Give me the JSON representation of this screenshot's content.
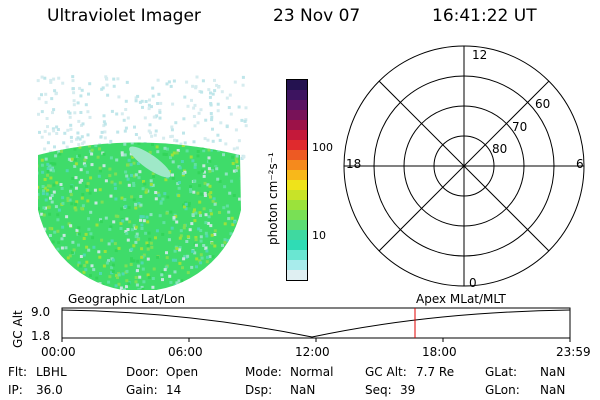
{
  "header": {
    "instrument": "Ultraviolet Imager",
    "date": "23 Nov 07",
    "time": "16:41:22 UT"
  },
  "colorbar": {
    "label": "photon cm⁻²s⁻¹",
    "ticks": [
      "100",
      "10"
    ],
    "colors": [
      "#dfeff2",
      "#a8ecec",
      "#6ae6d2",
      "#2fdcb5",
      "#3fd9a0",
      "#5cdc74",
      "#79e055",
      "#9be23b",
      "#c8e328",
      "#efe31a",
      "#f8b81a",
      "#f58a1d",
      "#ed5a23",
      "#e02a2d",
      "#c4193a",
      "#9c1248",
      "#781258",
      "#5a1362",
      "#3d1460",
      "#241250"
    ],
    "palette": {
      "fill_main": "#3fdc6a",
      "fill_light": "#9fe8c8",
      "haze": "#d6ecef"
    }
  },
  "polar": {
    "mlt_labels": {
      "top": "12",
      "left": "18",
      "right": "6",
      "bottom": "0"
    },
    "lat_labels": [
      "60",
      "70",
      "80"
    ]
  },
  "timeline": {
    "axis_label": "GC Alt",
    "y_ticks": [
      "9.0",
      "1.8"
    ],
    "left_caption": "Geographic Lat/Lon",
    "right_caption": "Apex  MLat/MLT",
    "x_ticks": [
      "00:00",
      "06:00",
      "12:00",
      "18:00",
      "23:59"
    ],
    "marker_color": "#e00000"
  },
  "status": {
    "col1": [
      {
        "k": "Flt:",
        "v": "LBHL"
      },
      {
        "k": "IP:",
        "v": "36.0"
      }
    ],
    "col2": [
      {
        "k": "Door:",
        "v": "Open"
      },
      {
        "k": "Gain:",
        "v": "14"
      }
    ],
    "col3": [
      {
        "k": "Mode:",
        "v": "Normal"
      },
      {
        "k": "Dsp:",
        "v": "NaN"
      }
    ],
    "col4": [
      {
        "k": "GC Alt:",
        "v": "7.7 Re"
      },
      {
        "k": "Seq:",
        "v": "39"
      }
    ],
    "col5": [
      {
        "k": "GLat:",
        "v": "NaN"
      },
      {
        "k": "GLon:",
        "v": "NaN"
      }
    ]
  }
}
